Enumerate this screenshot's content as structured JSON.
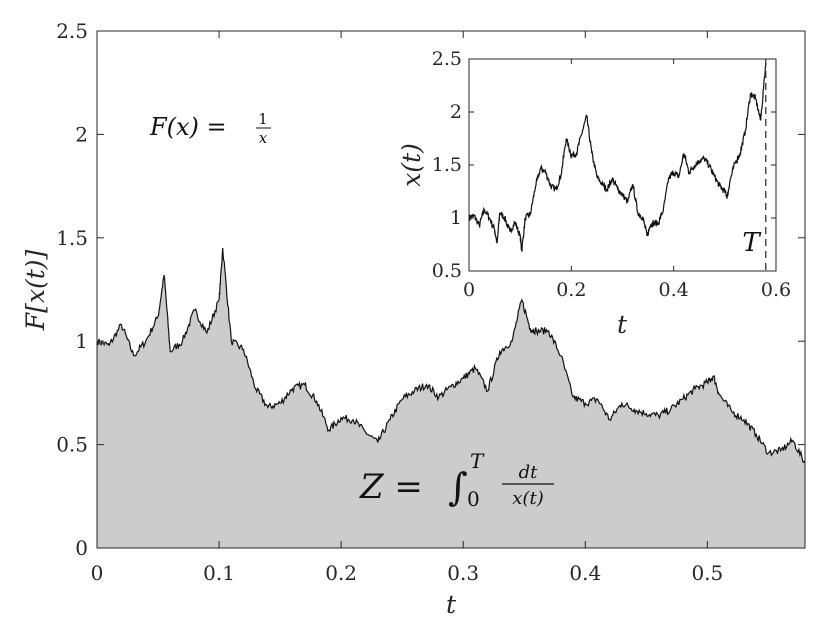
{
  "chart_data": [
    {
      "type": "area",
      "xlabel": "t",
      "ylabel": "F[x(t)]",
      "xlim": [
        0,
        0.58
      ],
      "ylim": [
        0,
        2.5
      ],
      "xticks": [
        "0",
        "0.1",
        "0.2",
        "0.3",
        "0.4",
        "0.5"
      ],
      "yticks": [
        "0",
        "0.5",
        "1",
        "1.5",
        "2",
        "2.5"
      ],
      "fill_color": "#cccccc",
      "line_color": "#111111",
      "annotations": {
        "formula_F_lhs": "F(x) =",
        "formula_F_num": "1",
        "formula_F_den": "x",
        "formula_Z_lhs": "Z =",
        "formula_Z_int": "∫",
        "formula_Z_lower": "0",
        "formula_Z_upper": "T",
        "formula_Z_num": "dt",
        "formula_Z_den": "x(t)"
      },
      "series": [
        {
          "x": [
            0,
            0.01,
            0.02,
            0.03,
            0.04,
            0.05,
            0.055,
            0.06,
            0.07,
            0.08,
            0.09,
            0.1,
            0.103,
            0.11,
            0.12,
            0.13,
            0.14,
            0.15,
            0.16,
            0.17,
            0.18,
            0.19,
            0.2,
            0.21,
            0.22,
            0.23,
            0.24,
            0.25,
            0.26,
            0.27,
            0.28,
            0.29,
            0.3,
            0.31,
            0.32,
            0.33,
            0.34,
            0.348,
            0.355,
            0.36,
            0.37,
            0.38,
            0.39,
            0.4,
            0.41,
            0.42,
            0.43,
            0.44,
            0.45,
            0.46,
            0.47,
            0.48,
            0.49,
            0.5,
            0.505,
            0.51,
            0.52,
            0.53,
            0.54,
            0.55,
            0.56,
            0.57,
            0.58
          ],
          "values": [
            1.0,
            0.98,
            1.08,
            0.93,
            1.0,
            1.12,
            1.32,
            0.95,
            1.0,
            1.15,
            1.04,
            1.2,
            1.45,
            1.0,
            0.96,
            0.77,
            0.68,
            0.7,
            0.77,
            0.79,
            0.71,
            0.57,
            0.63,
            0.62,
            0.56,
            0.51,
            0.62,
            0.72,
            0.76,
            0.79,
            0.73,
            0.78,
            0.82,
            0.87,
            0.76,
            0.95,
            1.0,
            1.2,
            1.06,
            1.05,
            1.05,
            0.93,
            0.73,
            0.7,
            0.72,
            0.62,
            0.7,
            0.67,
            0.65,
            0.64,
            0.67,
            0.72,
            0.77,
            0.8,
            0.83,
            0.74,
            0.66,
            0.62,
            0.55,
            0.46,
            0.47,
            0.52,
            0.41
          ]
        }
      ]
    },
    {
      "type": "line",
      "xlabel": "t",
      "ylabel": "x(t)",
      "xlim": [
        0,
        0.6
      ],
      "ylim": [
        0.5,
        2.5
      ],
      "xticks": [
        "0",
        "0.2",
        "0.4",
        "0.6"
      ],
      "yticks": [
        "0.5",
        "1",
        "1.5",
        "2",
        "2.5"
      ],
      "line_color": "#111111",
      "vline": {
        "x": 0.58,
        "style": "dashed",
        "label": "T"
      },
      "series": [
        {
          "x": [
            0,
            0.01,
            0.02,
            0.03,
            0.04,
            0.05,
            0.055,
            0.06,
            0.07,
            0.08,
            0.09,
            0.1,
            0.103,
            0.11,
            0.12,
            0.13,
            0.14,
            0.15,
            0.16,
            0.17,
            0.18,
            0.19,
            0.2,
            0.21,
            0.22,
            0.23,
            0.24,
            0.25,
            0.26,
            0.27,
            0.28,
            0.29,
            0.3,
            0.31,
            0.32,
            0.33,
            0.34,
            0.348,
            0.355,
            0.36,
            0.37,
            0.38,
            0.39,
            0.4,
            0.41,
            0.42,
            0.43,
            0.44,
            0.45,
            0.46,
            0.47,
            0.48,
            0.49,
            0.5,
            0.505,
            0.51,
            0.52,
            0.53,
            0.54,
            0.55,
            0.56,
            0.57,
            0.58
          ],
          "values": [
            1.0,
            1.02,
            0.93,
            1.08,
            1.0,
            0.89,
            0.76,
            1.05,
            1.0,
            0.87,
            0.96,
            0.83,
            0.69,
            1.0,
            1.04,
            1.3,
            1.47,
            1.43,
            1.3,
            1.27,
            1.41,
            1.75,
            1.59,
            1.61,
            1.79,
            1.96,
            1.61,
            1.39,
            1.32,
            1.27,
            1.37,
            1.28,
            1.22,
            1.15,
            1.32,
            1.05,
            1.0,
            0.83,
            0.94,
            0.95,
            0.95,
            1.08,
            1.37,
            1.43,
            1.39,
            1.61,
            1.43,
            1.49,
            1.54,
            1.56,
            1.49,
            1.39,
            1.3,
            1.25,
            1.2,
            1.35,
            1.52,
            1.61,
            1.82,
            2.17,
            2.13,
            1.92,
            2.46
          ]
        }
      ]
    }
  ]
}
